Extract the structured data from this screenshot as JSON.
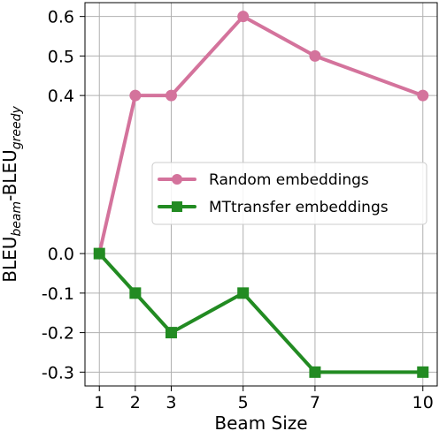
{
  "chart_data": {
    "type": "line",
    "x": [
      1,
      2,
      3,
      5,
      7,
      10
    ],
    "xticks": [
      "1",
      "2",
      "3",
      "5",
      "7",
      "10"
    ],
    "yticks": [
      "0.6",
      "0.5",
      "0.4",
      "0.0",
      "-0.1",
      "-0.2",
      "-0.3"
    ],
    "ytick_values": [
      0.6,
      0.5,
      0.4,
      0.0,
      -0.1,
      -0.2,
      -0.3
    ],
    "xlabel": "Beam Size",
    "ylabel": "BLEU",
    "ylabel_sub1": "beam",
    "ylabel_mid": "-BLEU",
    "ylabel_sub2": "greedy",
    "xlim": [
      0.6,
      10.4
    ],
    "ylim": [
      -0.335,
      0.635
    ],
    "grid": true,
    "legend_position": "center-right",
    "series": [
      {
        "name": "Random embeddings",
        "values": [
          0.0,
          0.4,
          0.4,
          0.6,
          0.5,
          0.4
        ],
        "color": "#d4739c",
        "marker": "circle"
      },
      {
        "name": "MTtransfer embeddings",
        "values": [
          0.0,
          -0.1,
          -0.2,
          -0.1,
          -0.3,
          -0.3
        ],
        "color": "#228b22",
        "marker": "square"
      }
    ]
  }
}
